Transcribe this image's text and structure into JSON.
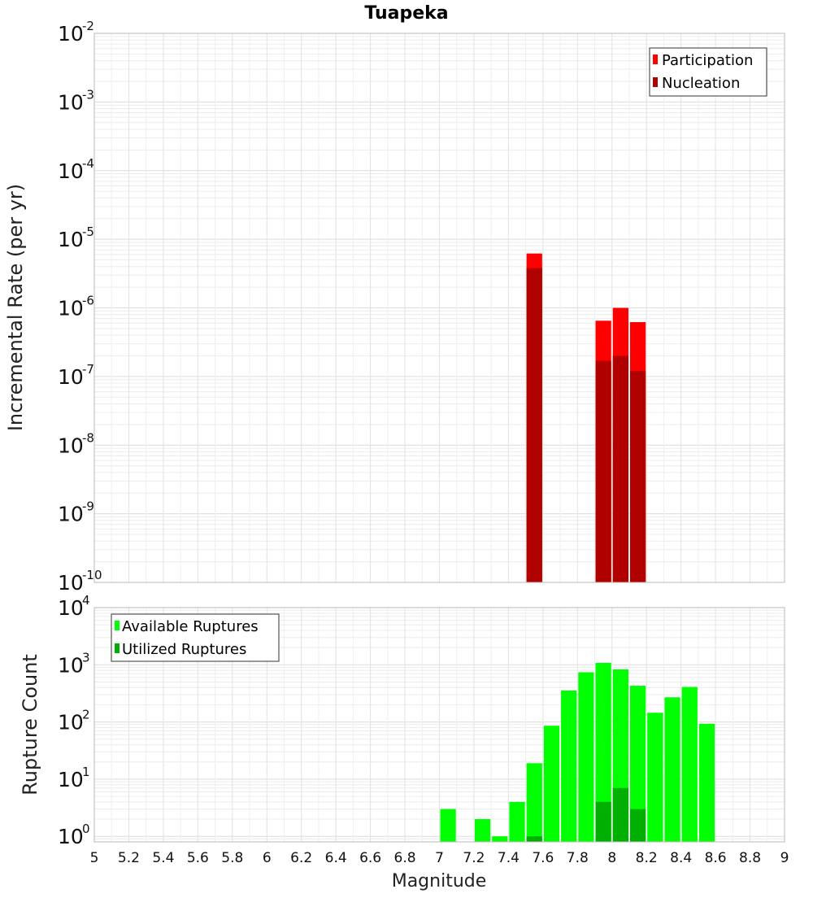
{
  "chart_data": [
    {
      "type": "bar",
      "title": "Tuapeka",
      "ylabel": "Incremental Rate (per yr)",
      "xlabel": "",
      "yscale": "log",
      "xlim": [
        5,
        9
      ],
      "ylim": [
        1e-10,
        0.01
      ],
      "bin_width": 0.1,
      "y_ticks": [
        {
          "base": "10",
          "exp": "-10",
          "value": 1e-10
        },
        {
          "base": "10",
          "exp": "-9",
          "value": 1e-09
        },
        {
          "base": "10",
          "exp": "-8",
          "value": 1e-08
        },
        {
          "base": "10",
          "exp": "-7",
          "value": 1e-07
        },
        {
          "base": "10",
          "exp": "-6",
          "value": 1e-06
        },
        {
          "base": "10",
          "exp": "-5",
          "value": 1e-05
        },
        {
          "base": "10",
          "exp": "-4",
          "value": 0.0001
        },
        {
          "base": "10",
          "exp": "-3",
          "value": 0.001
        },
        {
          "base": "10",
          "exp": "-2",
          "value": 0.01
        }
      ],
      "legend_position": "top-right",
      "series": [
        {
          "name": "Participation",
          "color": "#ff0000",
          "x": [
            7.55,
            7.95,
            8.05,
            8.15
          ],
          "values": [
            6.2e-06,
            6.5e-07,
            1e-06,
            6.2e-07
          ]
        },
        {
          "name": "Nucleation",
          "color": "#b00000",
          "x": [
            7.55,
            7.95,
            8.05,
            8.15
          ],
          "values": [
            3.8e-06,
            1.7e-07,
            2e-07,
            1.2e-07
          ]
        }
      ]
    },
    {
      "type": "bar",
      "title": "",
      "ylabel": "Rupture Count",
      "xlabel": "Magnitude",
      "yscale": "log",
      "xlim": [
        5,
        9
      ],
      "ylim": [
        0.8,
        10000
      ],
      "bin_width": 0.1,
      "x_ticks": [
        "5",
        "5.2",
        "5.4",
        "5.6",
        "5.8",
        "6",
        "6.2",
        "6.4",
        "6.6",
        "6.8",
        "7",
        "7.2",
        "7.4",
        "7.6",
        "7.8",
        "8",
        "8.2",
        "8.4",
        "8.6",
        "8.8",
        "9"
      ],
      "y_ticks": [
        {
          "base": "10",
          "exp": "0",
          "value": 1
        },
        {
          "base": "10",
          "exp": "1",
          "value": 10
        },
        {
          "base": "10",
          "exp": "2",
          "value": 100
        },
        {
          "base": "10",
          "exp": "3",
          "value": 1000
        },
        {
          "base": "10",
          "exp": "4",
          "value": 10000
        }
      ],
      "legend_position": "top-left",
      "series": [
        {
          "name": "Available Ruptures",
          "color": "#00ff00",
          "x": [
            7.05,
            7.25,
            7.35,
            7.45,
            7.55,
            7.65,
            7.75,
            7.85,
            7.95,
            8.05,
            8.15,
            8.25,
            8.35,
            8.45,
            8.55
          ],
          "values": [
            3,
            2,
            1,
            4,
            19,
            86,
            355,
            740,
            1080,
            830,
            430,
            145,
            270,
            410,
            93
          ]
        },
        {
          "name": "Utilized Ruptures",
          "color": "#00b000",
          "x": [
            7.55,
            7.95,
            8.05,
            8.15
          ],
          "values": [
            1,
            4,
            7,
            3
          ]
        }
      ]
    }
  ]
}
